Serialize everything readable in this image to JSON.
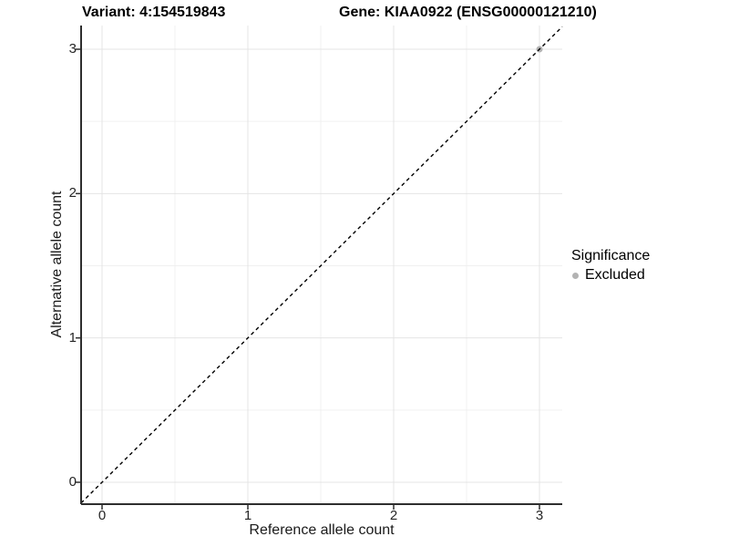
{
  "chart_data": {
    "type": "scatter",
    "title_left": "Variant: 4:154519843",
    "title_right": "Gene: KIAA0922 (ENSG00000121210)",
    "xlabel": "Reference allele count",
    "ylabel": "Alternative allele count",
    "x_ticks": [
      0,
      1,
      2,
      3
    ],
    "y_ticks": [
      0,
      1,
      2,
      3
    ],
    "x_minor_ticks": [
      0.5,
      1.5,
      2.5
    ],
    "y_minor_ticks": [
      0.5,
      1.5,
      2.5
    ],
    "xlim": [
      -0.15,
      3.15
    ],
    "ylim": [
      -0.15,
      3.15
    ],
    "grid": "major+minor",
    "legend_position": "right",
    "reference_line": {
      "equation": "y = x",
      "style": "dashed",
      "color": "#000000",
      "dash": "4 3.5"
    },
    "series": [
      {
        "name": "Excluded",
        "color": "#b3b3b3",
        "points": [
          {
            "x": 3,
            "y": 3
          }
        ]
      }
    ],
    "legend": {
      "title": "Significance",
      "entries": [
        {
          "label": "Excluded",
          "color": "#b3b3b3"
        }
      ]
    },
    "style": {
      "axis_color": "#2e2e2e",
      "grid_major_color": "#e4e4e4",
      "grid_minor_color": "#f0f0f0",
      "background": "#ffffff"
    }
  }
}
